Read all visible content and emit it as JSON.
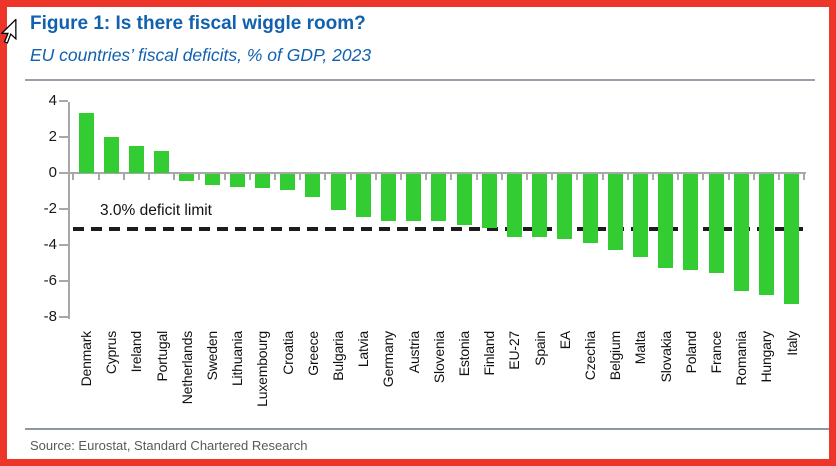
{
  "figure": {
    "title": "Figure 1: Is there fiscal wiggle room?",
    "subtitle": "EU countries’ fiscal deficits, % of GDP, 2023",
    "source": "Source: Eurostat, Standard Chartered Research"
  },
  "colors": {
    "frame_red": "#ee352a",
    "bar_green": "#33cc33",
    "title_blue": "#1161ae",
    "axis_gray": "#a8a8a8",
    "limit_line_black": "#1c1c1c",
    "source_gray": "#595959"
  },
  "icons": {
    "cursor": "mouse-pointer-arrow"
  },
  "chart_data": {
    "type": "bar",
    "title": "Figure 1: Is there fiscal wiggle room?",
    "subtitle": "EU countries’ fiscal deficits, % of GDP, 2023",
    "xlabel": "",
    "ylabel": "% of GDP",
    "ylim": [
      -8,
      4
    ],
    "yticks": [
      4,
      2,
      0,
      -2,
      -4,
      -6,
      -8
    ],
    "grid": false,
    "legend": "none",
    "bar_color": "#33cc33",
    "categories": [
      "Denmark",
      "Cyprus",
      "Ireland",
      "Portugal",
      "Netherlands",
      "Sweden",
      "Lithuania",
      "Luxembourg",
      "Croatia",
      "Greece",
      "Bulgaria",
      "Latvia",
      "Germany",
      "Austria",
      "Slovenia",
      "Estonia",
      "Finland",
      "EU-27",
      "Spain",
      "EA",
      "Czechia",
      "Belgium",
      "Malta",
      "Slovakia",
      "Poland",
      "France",
      "Romania",
      "Hungary",
      "Italy"
    ],
    "values": [
      3.3,
      2.0,
      1.5,
      1.2,
      -0.4,
      -0.6,
      -0.7,
      -0.8,
      -0.9,
      -1.3,
      -2.0,
      -2.4,
      -2.6,
      -2.6,
      -2.6,
      -2.8,
      -3.0,
      -3.5,
      -3.5,
      -3.6,
      -3.8,
      -4.2,
      -4.6,
      -5.2,
      -5.3,
      -5.5,
      -6.5,
      -6.7,
      -7.2
    ],
    "reference_line": {
      "value": -3.0,
      "label": "3.0% deficit limit",
      "style": "dashed",
      "color": "#1c1c1c"
    }
  }
}
